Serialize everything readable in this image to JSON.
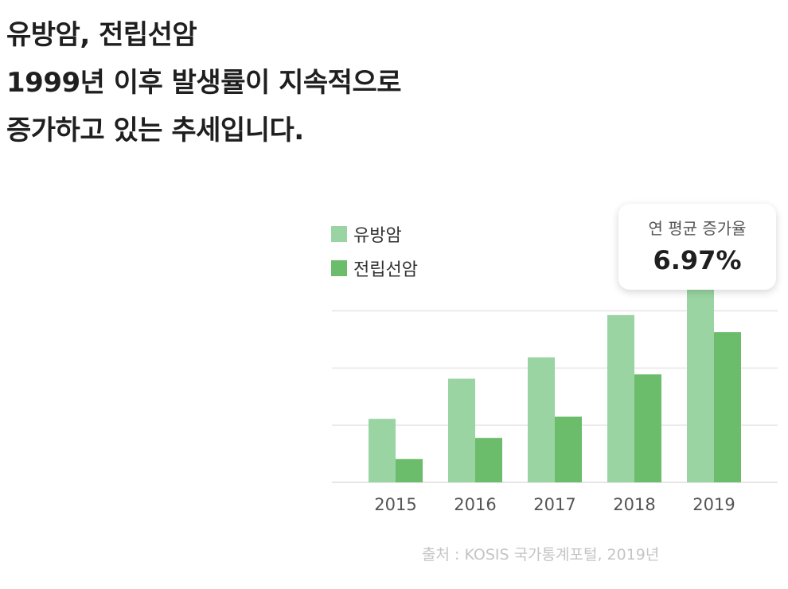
{
  "headline": {
    "line1": "유방암, 전립선암",
    "line2": "1999년 이후 발생률이 지속적으로",
    "line3": "증가하고 있는 추세입니다."
  },
  "callout": {
    "label": "연 평균 증가율",
    "value": "6.97%"
  },
  "source": "출처 : KOSIS 국가통계포털, 2019년",
  "colors": {
    "breast": "#9ad4a3",
    "prostate": "#6bbd6b",
    "grid": "#e6e6e6",
    "axis_text": "#555555"
  },
  "chart_data": {
    "type": "bar",
    "categories": [
      "2015",
      "2016",
      "2017",
      "2018",
      "2019"
    ],
    "series": [
      {
        "name": "유방암",
        "values": [
          30,
          49,
          59,
          79,
          99
        ]
      },
      {
        "name": "전립선암",
        "values": [
          11,
          21,
          31,
          51,
          71
        ]
      }
    ],
    "ylim": [
      0,
      100
    ],
    "grid": true,
    "legend": "top-left"
  }
}
